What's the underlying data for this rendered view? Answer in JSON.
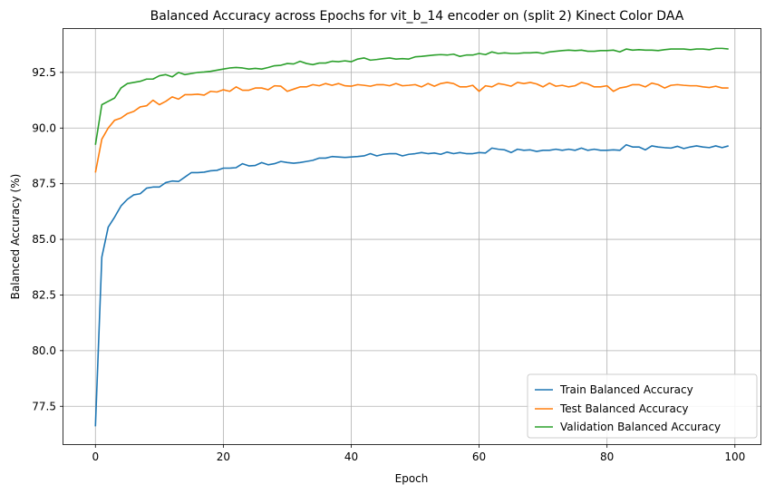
{
  "chart_data": {
    "type": "line",
    "title": "Balanced Accuracy across Epochs for vit_b_14 encoder on (split 2) Kinect Color DAA",
    "xlabel": "Epoch",
    "ylabel": "Balanced Accuracy (%)",
    "xlim": [
      -5,
      104
    ],
    "ylim": [
      75.8,
      94.45
    ],
    "xticks": [
      0,
      20,
      40,
      60,
      80,
      100
    ],
    "yticks": [
      77.5,
      80.0,
      82.5,
      85.0,
      87.5,
      90.0,
      92.5
    ],
    "xtick_labels": [
      "0",
      "20",
      "40",
      "60",
      "80",
      "100"
    ],
    "ytick_labels": [
      "77.5",
      "80.0",
      "82.5",
      "85.0",
      "87.5",
      "90.0",
      "92.5"
    ],
    "grid": true,
    "legend_position": "lower right",
    "x": [
      0,
      1,
      2,
      3,
      4,
      5,
      6,
      7,
      8,
      9,
      10,
      11,
      12,
      13,
      14,
      15,
      16,
      17,
      18,
      19,
      20,
      21,
      22,
      23,
      24,
      25,
      26,
      27,
      28,
      29,
      30,
      31,
      32,
      33,
      34,
      35,
      36,
      37,
      38,
      39,
      40,
      41,
      42,
      43,
      44,
      45,
      46,
      47,
      48,
      49,
      50,
      51,
      52,
      53,
      54,
      55,
      56,
      57,
      58,
      59,
      60,
      61,
      62,
      63,
      64,
      65,
      66,
      67,
      68,
      69,
      70,
      71,
      72,
      73,
      74,
      75,
      76,
      77,
      78,
      79,
      80,
      81,
      82,
      83,
      84,
      85,
      86,
      87,
      88,
      89,
      90,
      91,
      92,
      93,
      94,
      95,
      96,
      97,
      98,
      99
    ],
    "series": [
      {
        "name": "Train Balanced Accuracy",
        "color": "#1f77b4",
        "values": [
          76.6,
          84.2,
          85.55,
          86.0,
          86.5,
          86.8,
          87.0,
          87.05,
          87.3,
          87.35,
          87.35,
          87.55,
          87.62,
          87.6,
          87.8,
          88.0,
          88.0,
          88.02,
          88.08,
          88.1,
          88.2,
          88.2,
          88.22,
          88.4,
          88.3,
          88.32,
          88.45,
          88.35,
          88.4,
          88.5,
          88.45,
          88.42,
          88.45,
          88.5,
          88.55,
          88.65,
          88.65,
          88.72,
          88.7,
          88.68,
          88.7,
          88.72,
          88.75,
          88.85,
          88.75,
          88.82,
          88.85,
          88.85,
          88.75,
          88.82,
          88.85,
          88.9,
          88.85,
          88.88,
          88.82,
          88.92,
          88.85,
          88.9,
          88.85,
          88.85,
          88.9,
          88.88,
          89.1,
          89.05,
          89.02,
          88.9,
          89.05,
          89.0,
          89.02,
          88.95,
          89.0,
          89.0,
          89.05,
          89.0,
          89.05,
          89.0,
          89.1,
          89.0,
          89.05,
          89.0,
          89.0,
          89.02,
          89.0,
          89.25,
          89.15,
          89.15,
          89.02,
          89.2,
          89.15,
          89.12,
          89.1,
          89.18,
          89.08,
          89.15,
          89.2,
          89.15,
          89.12,
          89.2,
          89.12,
          89.2
        ]
      },
      {
        "name": "Test Balanced Accuracy",
        "color": "#ff7f0e",
        "values": [
          88.0,
          89.5,
          90.0,
          90.35,
          90.45,
          90.65,
          90.75,
          90.95,
          91.0,
          91.25,
          91.05,
          91.2,
          91.4,
          91.3,
          91.5,
          91.5,
          91.52,
          91.48,
          91.65,
          91.62,
          91.72,
          91.65,
          91.85,
          91.7,
          91.7,
          91.8,
          91.8,
          91.72,
          91.9,
          91.88,
          91.65,
          91.75,
          91.85,
          91.85,
          91.95,
          91.9,
          92.0,
          91.92,
          92.0,
          91.9,
          91.88,
          91.95,
          91.92,
          91.88,
          91.95,
          91.95,
          91.9,
          92.0,
          91.9,
          91.92,
          91.95,
          91.85,
          92.0,
          91.88,
          92.0,
          92.05,
          92.0,
          91.85,
          91.85,
          91.92,
          91.65,
          91.9,
          91.85,
          92.0,
          91.95,
          91.88,
          92.05,
          92.0,
          92.05,
          91.98,
          91.85,
          92.02,
          91.88,
          91.92,
          91.85,
          91.9,
          92.05,
          91.98,
          91.85,
          91.85,
          91.9,
          91.65,
          91.8,
          91.85,
          91.95,
          91.95,
          91.85,
          92.02,
          91.95,
          91.8,
          91.92,
          91.95,
          91.92,
          91.9,
          91.9,
          91.85,
          91.82,
          91.88,
          91.8,
          91.8
        ]
      },
      {
        "name": "Validation Balanced Accuracy",
        "color": "#2ca02c",
        "values": [
          89.25,
          91.05,
          91.2,
          91.35,
          91.8,
          92.0,
          92.05,
          92.1,
          92.2,
          92.2,
          92.35,
          92.4,
          92.3,
          92.5,
          92.4,
          92.45,
          92.5,
          92.52,
          92.55,
          92.6,
          92.65,
          92.7,
          92.72,
          92.7,
          92.65,
          92.68,
          92.65,
          92.72,
          92.8,
          92.82,
          92.9,
          92.88,
          93.0,
          92.9,
          92.85,
          92.92,
          92.92,
          93.0,
          92.98,
          93.02,
          92.98,
          93.1,
          93.15,
          93.05,
          93.08,
          93.12,
          93.15,
          93.1,
          93.12,
          93.1,
          93.2,
          93.22,
          93.25,
          93.28,
          93.3,
          93.28,
          93.32,
          93.22,
          93.28,
          93.28,
          93.35,
          93.3,
          93.42,
          93.35,
          93.38,
          93.35,
          93.35,
          93.38,
          93.38,
          93.4,
          93.35,
          93.42,
          93.45,
          93.48,
          93.5,
          93.48,
          93.5,
          93.45,
          93.45,
          93.48,
          93.48,
          93.5,
          93.42,
          93.55,
          93.5,
          93.52,
          93.5,
          93.5,
          93.48,
          93.52,
          93.55,
          93.55,
          93.55,
          93.52,
          93.55,
          93.55,
          93.52,
          93.58,
          93.58,
          93.55
        ]
      }
    ]
  }
}
